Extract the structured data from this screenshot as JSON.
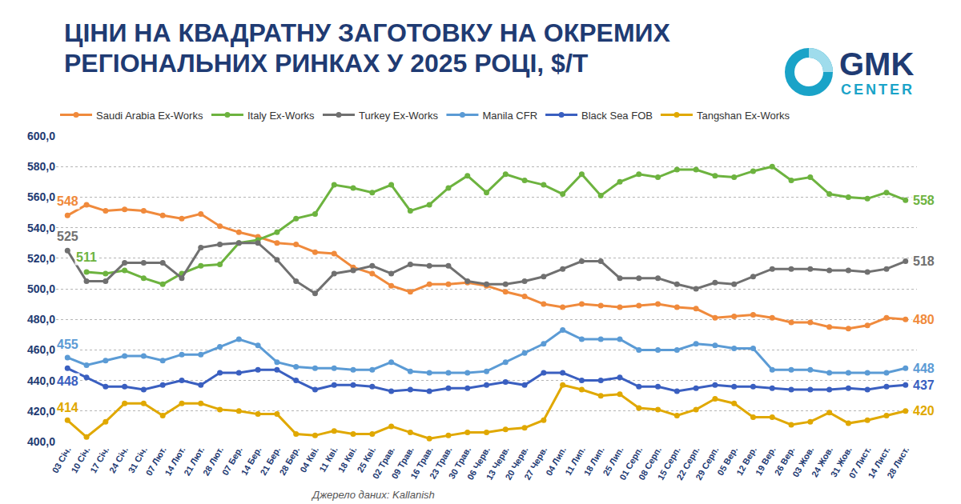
{
  "chart_data": {
    "type": "line",
    "title": "ЦІНИ НА КВАДРАТНУ ЗАГОТОВКУ НА ОКРЕМИХ РЕГІОНАЛЬНИХ РИНКАХ У 2025 РОЦІ, $/Т",
    "categories": [
      "03 Січ.",
      "10 Січ.",
      "17 Січ.",
      "24 Січ.",
      "31 Січ.",
      "07 Лют.",
      "14 Лют.",
      "21 Лют.",
      "28 Лют.",
      "07 Бер.",
      "14 Бер.",
      "21 Бер.",
      "28 Бер.",
      "04 Кві.",
      "11 Кві.",
      "18 Кві.",
      "25 Кві.",
      "02 Трав.",
      "09 Трав.",
      "16 Трав.",
      "23 Трав.",
      "30 Трав.",
      "06 Черв.",
      "13 Черв.",
      "20 Черв.",
      "27 Черв.",
      "04 Лип.",
      "11 Лип.",
      "18 Лип.",
      "25 Лип.",
      "01 Серп.",
      "08 Серп.",
      "15 Серп.",
      "22 Серп.",
      "29 Серп.",
      "05 Вер.",
      "12 Вер.",
      "19 Вер.",
      "26 Вер.",
      "03 Жов.",
      "24 Жов.",
      "31 Жов.",
      "07 Лист.",
      "14 Лист.",
      "28 Лист."
    ],
    "series": [
      {
        "name": "Saudi Arabia Ex-Works",
        "color": "#f08a3c",
        "marker": "circle",
        "line_style": "solid",
        "values": [
          548,
          555,
          551,
          552,
          551,
          548,
          546,
          549,
          541,
          537,
          534,
          530,
          529,
          524,
          523,
          514,
          510,
          502,
          498,
          503,
          503,
          504,
          502,
          498,
          495,
          490,
          488,
          490,
          489,
          488,
          489,
          490,
          488,
          487,
          481,
          482,
          483,
          481,
          478,
          478,
          475,
          474,
          476,
          481,
          480
        ]
      },
      {
        "name": "Italy Ex-Works",
        "color": "#6db33f",
        "marker": "circle",
        "line_style": "solid",
        "values": [
          null,
          511,
          510,
          512,
          507,
          503,
          510,
          515,
          516,
          530,
          532,
          537,
          546,
          549,
          568,
          566,
          563,
          568,
          551,
          555,
          566,
          574,
          563,
          575,
          571,
          568,
          562,
          575,
          561,
          570,
          575,
          573,
          578,
          578,
          574,
          573,
          577,
          580,
          571,
          573,
          562,
          560,
          559,
          563,
          558
        ]
      },
      {
        "name": "Turkey Ex-Works",
        "color": "#707070",
        "marker": "circle",
        "line_style": "solid",
        "values": [
          525,
          505,
          505,
          517,
          517,
          517,
          507,
          527,
          529,
          530,
          530,
          519,
          505,
          497,
          510,
          512,
          515,
          510,
          516,
          515,
          515,
          505,
          503,
          503,
          505,
          508,
          513,
          518,
          518,
          507,
          507,
          507,
          503,
          500,
          504,
          503,
          508,
          513,
          513,
          513,
          512,
          512,
          511,
          513,
          518
        ]
      },
      {
        "name": "Manila CFR",
        "color": "#5b9bd5",
        "marker": "circle",
        "line_style": "solid",
        "values": [
          455,
          450,
          453,
          456,
          456,
          453,
          457,
          457,
          462,
          467,
          463,
          452,
          449,
          448,
          448,
          447,
          447,
          452,
          446,
          445,
          445,
          445,
          446,
          452,
          458,
          464,
          473,
          467,
          467,
          467,
          460,
          460,
          460,
          464,
          463,
          461,
          461,
          447,
          447,
          447,
          445,
          445,
          445,
          445,
          448
        ]
      },
      {
        "name": "Black Sea FOB",
        "color": "#3a5fc0",
        "marker": "circle",
        "line_style": "solid",
        "values": [
          448,
          442,
          436,
          436,
          434,
          437,
          440,
          437,
          445,
          445,
          447,
          447,
          440,
          434,
          437,
          437,
          436,
          433,
          434,
          433,
          435,
          435,
          437,
          439,
          437,
          445,
          445,
          440,
          440,
          442,
          436,
          436,
          433,
          435,
          437,
          436,
          436,
          435,
          434,
          434,
          434,
          435,
          434,
          436,
          437
        ]
      },
      {
        "name": "Tangshan Ex-Works",
        "color": "#e0a800",
        "marker": "circle",
        "line_style": "solid",
        "values": [
          414,
          403,
          413,
          425,
          425,
          417,
          425,
          425,
          421,
          420,
          418,
          418,
          405,
          404,
          407,
          405,
          405,
          410,
          406,
          402,
          404,
          406,
          406,
          408,
          409,
          414,
          437,
          434,
          430,
          431,
          422,
          421,
          417,
          421,
          428,
          425,
          416,
          416,
          411,
          413,
          419,
          412,
          414,
          417,
          420
        ]
      }
    ],
    "annotations": [
      {
        "text": "548",
        "series": "Saudi Arabia Ex-Works",
        "category": "03 Січ."
      },
      {
        "text": "525",
        "series": "Turkey Ex-Works",
        "category": "03 Січ."
      },
      {
        "text": "511",
        "series": "Italy Ex-Works",
        "category": "10 Січ."
      },
      {
        "text": "455",
        "series": "Manila CFR",
        "category": "03 Січ."
      },
      {
        "text": "448",
        "series": "Black Sea FOB",
        "category": "03 Січ."
      },
      {
        "text": "414",
        "series": "Tangshan Ex-Works",
        "category": "03 Січ."
      },
      {
        "text": "558",
        "series": "Italy Ex-Works",
        "category": "28 Лист."
      },
      {
        "text": "518",
        "series": "Turkey Ex-Works",
        "category": "28 Лист."
      },
      {
        "text": "480",
        "series": "Saudi Arabia Ex-Works",
        "category": "28 Лист."
      },
      {
        "text": "448",
        "series": "Manila CFR",
        "category": "28 Лист."
      },
      {
        "text": "437",
        "series": "Black Sea FOB",
        "category": "28 Лист."
      },
      {
        "text": "420",
        "series": "Tangshan Ex-Works",
        "category": "28 Лист."
      }
    ],
    "ylim": [
      400,
      600
    ],
    "yticks": [
      {
        "value": 400,
        "label": "400,0"
      },
      {
        "value": 420,
        "label": "420,0"
      },
      {
        "value": 440,
        "label": "440,0"
      },
      {
        "value": 460,
        "label": "460,0"
      },
      {
        "value": 480,
        "label": "480,0"
      },
      {
        "value": 500,
        "label": "500,0"
      },
      {
        "value": 520,
        "label": "520,0"
      },
      {
        "value": 540,
        "label": "540,0"
      },
      {
        "value": 560,
        "label": "560,0"
      },
      {
        "value": 580,
        "label": "580,0"
      },
      {
        "value": 600,
        "label": "600,0"
      }
    ],
    "grid": true,
    "legend": "top"
  },
  "brand": {
    "name": "GMK",
    "tagline": "CENTER"
  },
  "source": "Джерело даних: Kallanish"
}
